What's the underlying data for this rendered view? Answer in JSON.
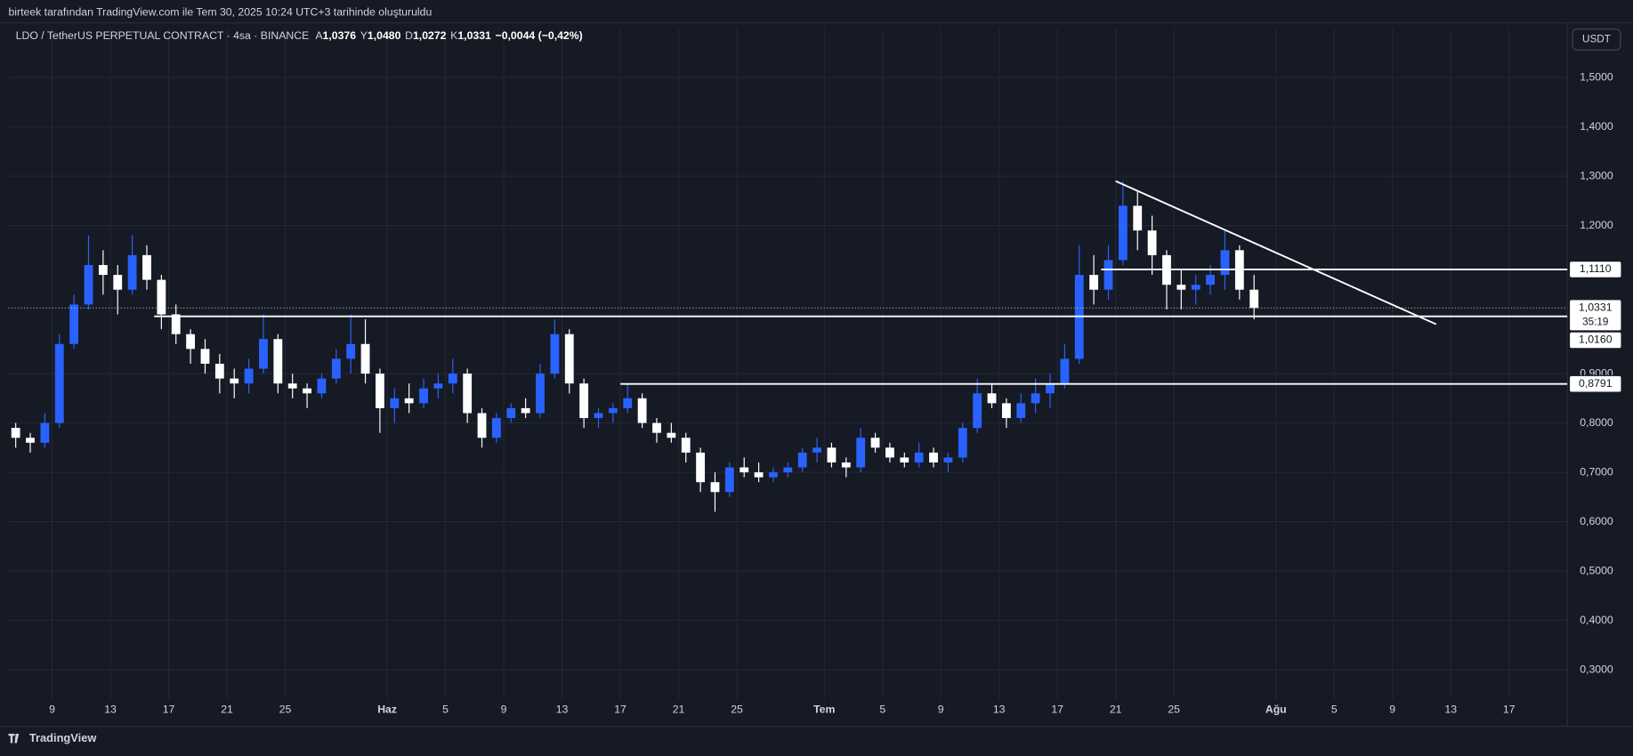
{
  "header": {
    "caption": "birteek tarafından TradingView.com ile Tem 30, 2025 10:24 UTC+3 tarihinde oluşturuldu"
  },
  "chart_data": {
    "type": "candlestick",
    "title": "LDO / TetherUS PERPETUAL CONTRACT · 4sa · BINANCE",
    "ohlc_legend": [
      {
        "key": "A",
        "value": "1,0376"
      },
      {
        "key": "Y",
        "value": "1,0480"
      },
      {
        "key": "D",
        "value": "1,0272"
      },
      {
        "key": "K",
        "value": "1,0331"
      }
    ],
    "change": "−0,0044 (−0,42%)",
    "currency": "USDT",
    "up_color": "#2962ff",
    "down_color": "#ffffff",
    "grid": true,
    "xlim": [
      "2025-05-06",
      "2025-08-21"
    ],
    "ylim": [
      0.24,
      1.6
    ],
    "xticks": [
      {
        "value": "2025-05-09",
        "label": "9"
      },
      {
        "value": "2025-05-13",
        "label": "13"
      },
      {
        "value": "2025-05-17",
        "label": "17"
      },
      {
        "value": "2025-05-21",
        "label": "21"
      },
      {
        "value": "2025-05-25",
        "label": "25"
      },
      {
        "value": "2025-06-01",
        "label": "Haz"
      },
      {
        "value": "2025-06-05",
        "label": "5"
      },
      {
        "value": "2025-06-09",
        "label": "9"
      },
      {
        "value": "2025-06-13",
        "label": "13"
      },
      {
        "value": "2025-06-17",
        "label": "17"
      },
      {
        "value": "2025-06-21",
        "label": "21"
      },
      {
        "value": "2025-06-25",
        "label": "25"
      },
      {
        "value": "2025-07-01",
        "label": "Tem"
      },
      {
        "value": "2025-07-05",
        "label": "5"
      },
      {
        "value": "2025-07-09",
        "label": "9"
      },
      {
        "value": "2025-07-13",
        "label": "13"
      },
      {
        "value": "2025-07-17",
        "label": "17"
      },
      {
        "value": "2025-07-21",
        "label": "21"
      },
      {
        "value": "2025-07-25",
        "label": "25"
      },
      {
        "value": "2025-08-01",
        "label": "Ağu"
      },
      {
        "value": "2025-08-05",
        "label": "5"
      },
      {
        "value": "2025-08-09",
        "label": "9"
      },
      {
        "value": "2025-08-13",
        "label": "13"
      },
      {
        "value": "2025-08-17",
        "label": "17"
      }
    ],
    "yticks": [
      {
        "value": 1.5,
        "label": "1,5000"
      },
      {
        "value": 1.4,
        "label": "1,4000"
      },
      {
        "value": 1.3,
        "label": "1,3000"
      },
      {
        "value": 1.2,
        "label": "1,2000"
      },
      {
        "value": 0.9,
        "label": "0,9000"
      },
      {
        "value": 0.8,
        "label": "0,8000"
      },
      {
        "value": 0.7,
        "label": "0,7000"
      },
      {
        "value": 0.6,
        "label": "0,6000"
      },
      {
        "value": 0.5,
        "label": "0,5000"
      },
      {
        "value": 0.4,
        "label": "0,4000"
      },
      {
        "value": 0.3,
        "label": "0,3000"
      }
    ],
    "x": [
      "2025-05-06",
      "2025-05-07",
      "2025-05-08",
      "2025-05-09",
      "2025-05-10",
      "2025-05-11",
      "2025-05-12",
      "2025-05-13",
      "2025-05-14",
      "2025-05-15",
      "2025-05-16",
      "2025-05-17",
      "2025-05-18",
      "2025-05-19",
      "2025-05-20",
      "2025-05-21",
      "2025-05-22",
      "2025-05-23",
      "2025-05-24",
      "2025-05-25",
      "2025-05-26",
      "2025-05-27",
      "2025-05-28",
      "2025-05-29",
      "2025-05-30",
      "2025-05-31",
      "2025-06-01",
      "2025-06-02",
      "2025-06-03",
      "2025-06-04",
      "2025-06-05",
      "2025-06-06",
      "2025-06-07",
      "2025-06-08",
      "2025-06-09",
      "2025-06-10",
      "2025-06-11",
      "2025-06-12",
      "2025-06-13",
      "2025-06-14",
      "2025-06-15",
      "2025-06-16",
      "2025-06-17",
      "2025-06-18",
      "2025-06-19",
      "2025-06-20",
      "2025-06-21",
      "2025-06-22",
      "2025-06-23",
      "2025-06-24",
      "2025-06-25",
      "2025-06-26",
      "2025-06-27",
      "2025-06-28",
      "2025-06-29",
      "2025-06-30",
      "2025-07-01",
      "2025-07-02",
      "2025-07-03",
      "2025-07-04",
      "2025-07-05",
      "2025-07-06",
      "2025-07-07",
      "2025-07-08",
      "2025-07-09",
      "2025-07-10",
      "2025-07-11",
      "2025-07-12",
      "2025-07-13",
      "2025-07-14",
      "2025-07-15",
      "2025-07-16",
      "2025-07-17",
      "2025-07-18",
      "2025-07-19",
      "2025-07-20",
      "2025-07-21",
      "2025-07-22",
      "2025-07-23",
      "2025-07-24",
      "2025-07-25",
      "2025-07-26",
      "2025-07-27",
      "2025-07-28",
      "2025-07-29",
      "2025-07-30"
    ],
    "open": [
      0.79,
      0.77,
      0.76,
      0.8,
      0.96,
      1.04,
      1.12,
      1.1,
      1.07,
      1.14,
      1.09,
      1.02,
      0.98,
      0.95,
      0.92,
      0.89,
      0.88,
      0.91,
      0.97,
      0.88,
      0.87,
      0.86,
      0.89,
      0.93,
      0.96,
      0.9,
      0.83,
      0.85,
      0.84,
      0.87,
      0.88,
      0.9,
      0.82,
      0.77,
      0.81,
      0.83,
      0.82,
      0.9,
      0.98,
      0.88,
      0.81,
      0.82,
      0.83,
      0.85,
      0.8,
      0.78,
      0.77,
      0.74,
      0.68,
      0.66,
      0.71,
      0.7,
      0.69,
      0.7,
      0.71,
      0.74,
      0.75,
      0.72,
      0.71,
      0.77,
      0.75,
      0.73,
      0.72,
      0.74,
      0.72,
      0.73,
      0.79,
      0.86,
      0.84,
      0.81,
      0.84,
      0.86,
      0.88,
      0.93,
      1.1,
      1.07,
      1.13,
      1.24,
      1.19,
      1.14,
      1.08,
      1.07,
      1.08,
      1.1,
      1.15,
      1.07
    ],
    "high": [
      0.8,
      0.78,
      0.82,
      0.98,
      1.06,
      1.18,
      1.15,
      1.12,
      1.18,
      1.16,
      1.1,
      1.04,
      0.99,
      0.97,
      0.94,
      0.91,
      0.93,
      1.02,
      0.98,
      0.9,
      0.88,
      0.9,
      0.95,
      1.02,
      1.01,
      0.91,
      0.87,
      0.88,
      0.89,
      0.9,
      0.93,
      0.91,
      0.83,
      0.82,
      0.84,
      0.85,
      0.92,
      1.01,
      0.99,
      0.89,
      0.83,
      0.84,
      0.88,
      0.86,
      0.81,
      0.8,
      0.78,
      0.75,
      0.7,
      0.72,
      0.73,
      0.72,
      0.71,
      0.72,
      0.75,
      0.77,
      0.76,
      0.73,
      0.79,
      0.78,
      0.76,
      0.74,
      0.76,
      0.75,
      0.74,
      0.8,
      0.89,
      0.88,
      0.85,
      0.86,
      0.89,
      0.9,
      0.96,
      1.16,
      1.14,
      1.16,
      1.29,
      1.27,
      1.22,
      1.15,
      1.11,
      1.1,
      1.12,
      1.19,
      1.16,
      1.1
    ],
    "low": [
      0.75,
      0.74,
      0.75,
      0.79,
      0.95,
      1.03,
      1.06,
      1.02,
      1.06,
      1.07,
      0.99,
      0.96,
      0.92,
      0.9,
      0.86,
      0.85,
      0.86,
      0.9,
      0.86,
      0.85,
      0.83,
      0.85,
      0.88,
      0.9,
      0.88,
      0.78,
      0.8,
      0.82,
      0.83,
      0.85,
      0.86,
      0.8,
      0.75,
      0.76,
      0.8,
      0.81,
      0.81,
      0.89,
      0.86,
      0.79,
      0.79,
      0.8,
      0.82,
      0.79,
      0.76,
      0.76,
      0.72,
      0.66,
      0.62,
      0.65,
      0.69,
      0.68,
      0.68,
      0.69,
      0.7,
      0.72,
      0.71,
      0.69,
      0.7,
      0.74,
      0.72,
      0.71,
      0.71,
      0.71,
      0.7,
      0.72,
      0.78,
      0.83,
      0.79,
      0.8,
      0.82,
      0.83,
      0.87,
      0.92,
      1.04,
      1.05,
      1.12,
      1.15,
      1.1,
      1.03,
      1.03,
      1.04,
      1.06,
      1.07,
      1.05,
      1.01
    ],
    "close": [
      0.77,
      0.76,
      0.8,
      0.96,
      1.04,
      1.12,
      1.1,
      1.07,
      1.14,
      1.09,
      1.02,
      0.98,
      0.95,
      0.92,
      0.89,
      0.88,
      0.91,
      0.97,
      0.88,
      0.87,
      0.86,
      0.89,
      0.93,
      0.96,
      0.9,
      0.83,
      0.85,
      0.84,
      0.87,
      0.88,
      0.9,
      0.82,
      0.77,
      0.81,
      0.83,
      0.82,
      0.9,
      0.98,
      0.88,
      0.81,
      0.82,
      0.83,
      0.85,
      0.8,
      0.78,
      0.77,
      0.74,
      0.68,
      0.66,
      0.71,
      0.7,
      0.69,
      0.7,
      0.71,
      0.74,
      0.75,
      0.72,
      0.71,
      0.77,
      0.75,
      0.73,
      0.72,
      0.74,
      0.72,
      0.73,
      0.79,
      0.86,
      0.84,
      0.81,
      0.84,
      0.86,
      0.88,
      0.93,
      1.1,
      1.07,
      1.13,
      1.24,
      1.19,
      1.14,
      1.08,
      1.07,
      1.08,
      1.1,
      1.15,
      1.07,
      1.0331
    ],
    "levels": [
      {
        "value": 1.111,
        "label": "1,1110",
        "start": "2025-07-20"
      },
      {
        "value": 1.016,
        "label": "1,0160",
        "start": "2025-05-16"
      },
      {
        "value": 0.8791,
        "label": "0,8791",
        "start": "2025-06-17"
      }
    ],
    "last_price": {
      "value": 1.0331,
      "label": "1,0331",
      "countdown": "35:19"
    },
    "trendline": {
      "start": [
        "2025-07-21",
        1.29
      ],
      "end": [
        "2025-08-12",
        1.0
      ]
    }
  },
  "footer": {
    "brand": "TradingView"
  }
}
